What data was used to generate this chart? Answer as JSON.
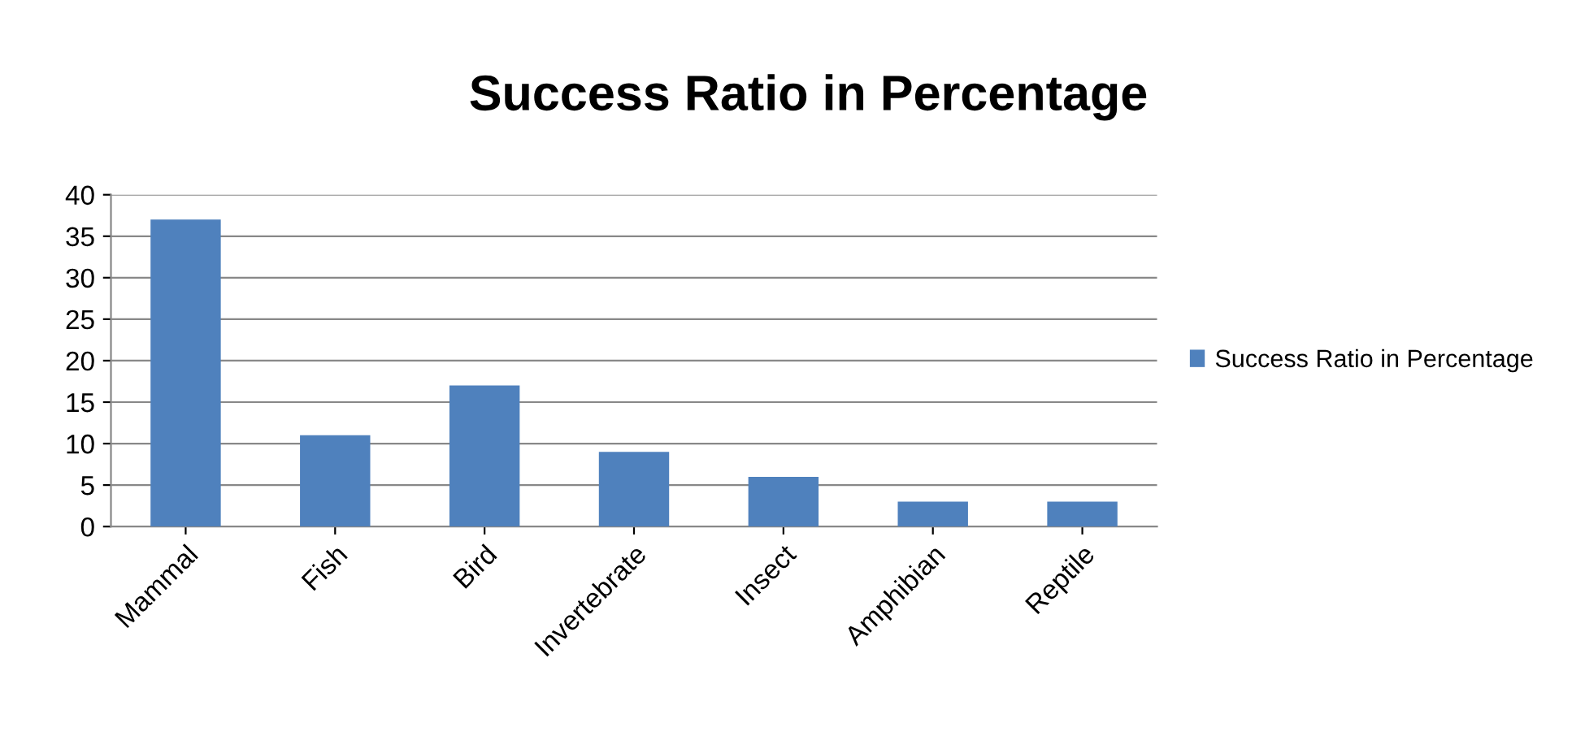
{
  "chart_data": {
    "type": "bar",
    "title": "Success Ratio in Percentage",
    "categories": [
      "Mammal",
      "Fish",
      "Bird",
      "Invertebrate",
      "Insect",
      "Amphibian",
      "Reptile"
    ],
    "series": [
      {
        "name": "Success Ratio in Percentage",
        "color": "#4f81bd",
        "values": [
          37,
          11,
          17,
          9,
          6,
          3,
          3
        ]
      }
    ],
    "ylim": [
      0,
      40
    ],
    "yticks": [
      0,
      5,
      10,
      15,
      20,
      25,
      30,
      35,
      40
    ],
    "grid": "y",
    "legend": "right"
  }
}
